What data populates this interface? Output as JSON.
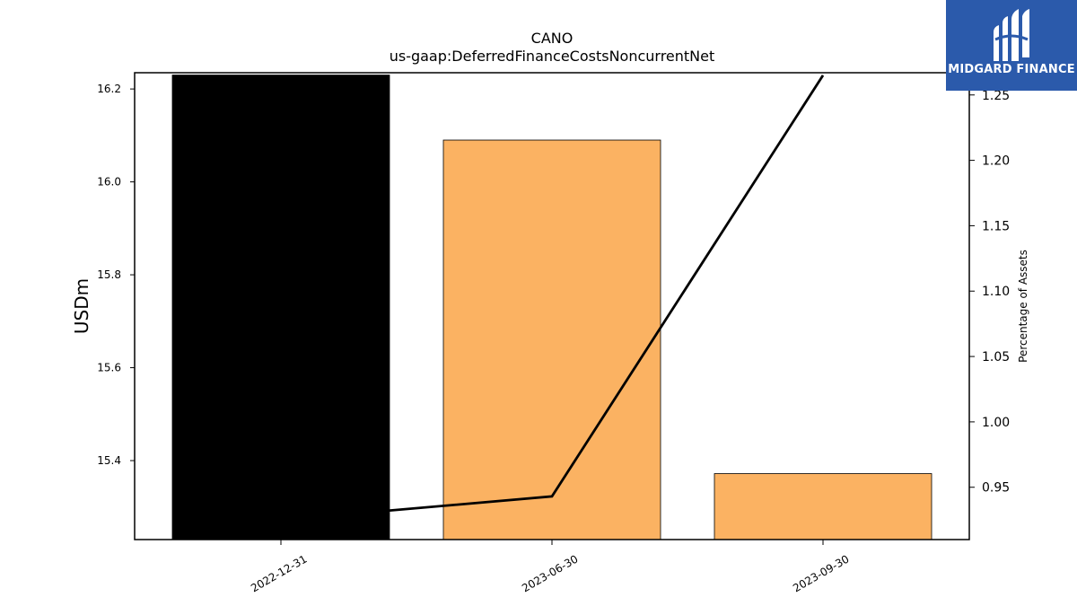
{
  "chart_data": {
    "type": "bar",
    "title": "CANO",
    "subtitle": "us-gaap:DeferredFinanceCostsNoncurrentNet",
    "categories": [
      "2022-12-31",
      "2023-06-30",
      "2023-09-30"
    ],
    "values": [
      16.23,
      16.09,
      15.372
    ],
    "bar_colors": [
      "#000000",
      "#fbb262",
      "#fbb262"
    ],
    "ylabel": "USDm",
    "ylim": [
      15.23,
      16.235
    ],
    "yticks": [
      "15.4",
      "15.6",
      "15.8",
      "16.0",
      "16.2"
    ],
    "ytick_values": [
      15.4,
      15.6,
      15.8,
      16.0,
      16.2
    ],
    "secondary_series": {
      "type": "line",
      "color": "#000000",
      "values": [
        0.925,
        0.943,
        1.265
      ]
    },
    "y2label": "Percentage of Assets",
    "y2lim": [
      0.91,
      1.267
    ],
    "y2ticks": [
      "0.95",
      "1.00",
      "1.05",
      "1.10",
      "1.15",
      "1.20",
      "1.25"
    ],
    "y2tick_values": [
      0.95,
      1.0,
      1.05,
      1.1,
      1.15,
      1.2,
      1.25
    ],
    "grid": false
  },
  "logo": {
    "text": "MIDGARD FINANCE",
    "background": "#2b5aab"
  }
}
